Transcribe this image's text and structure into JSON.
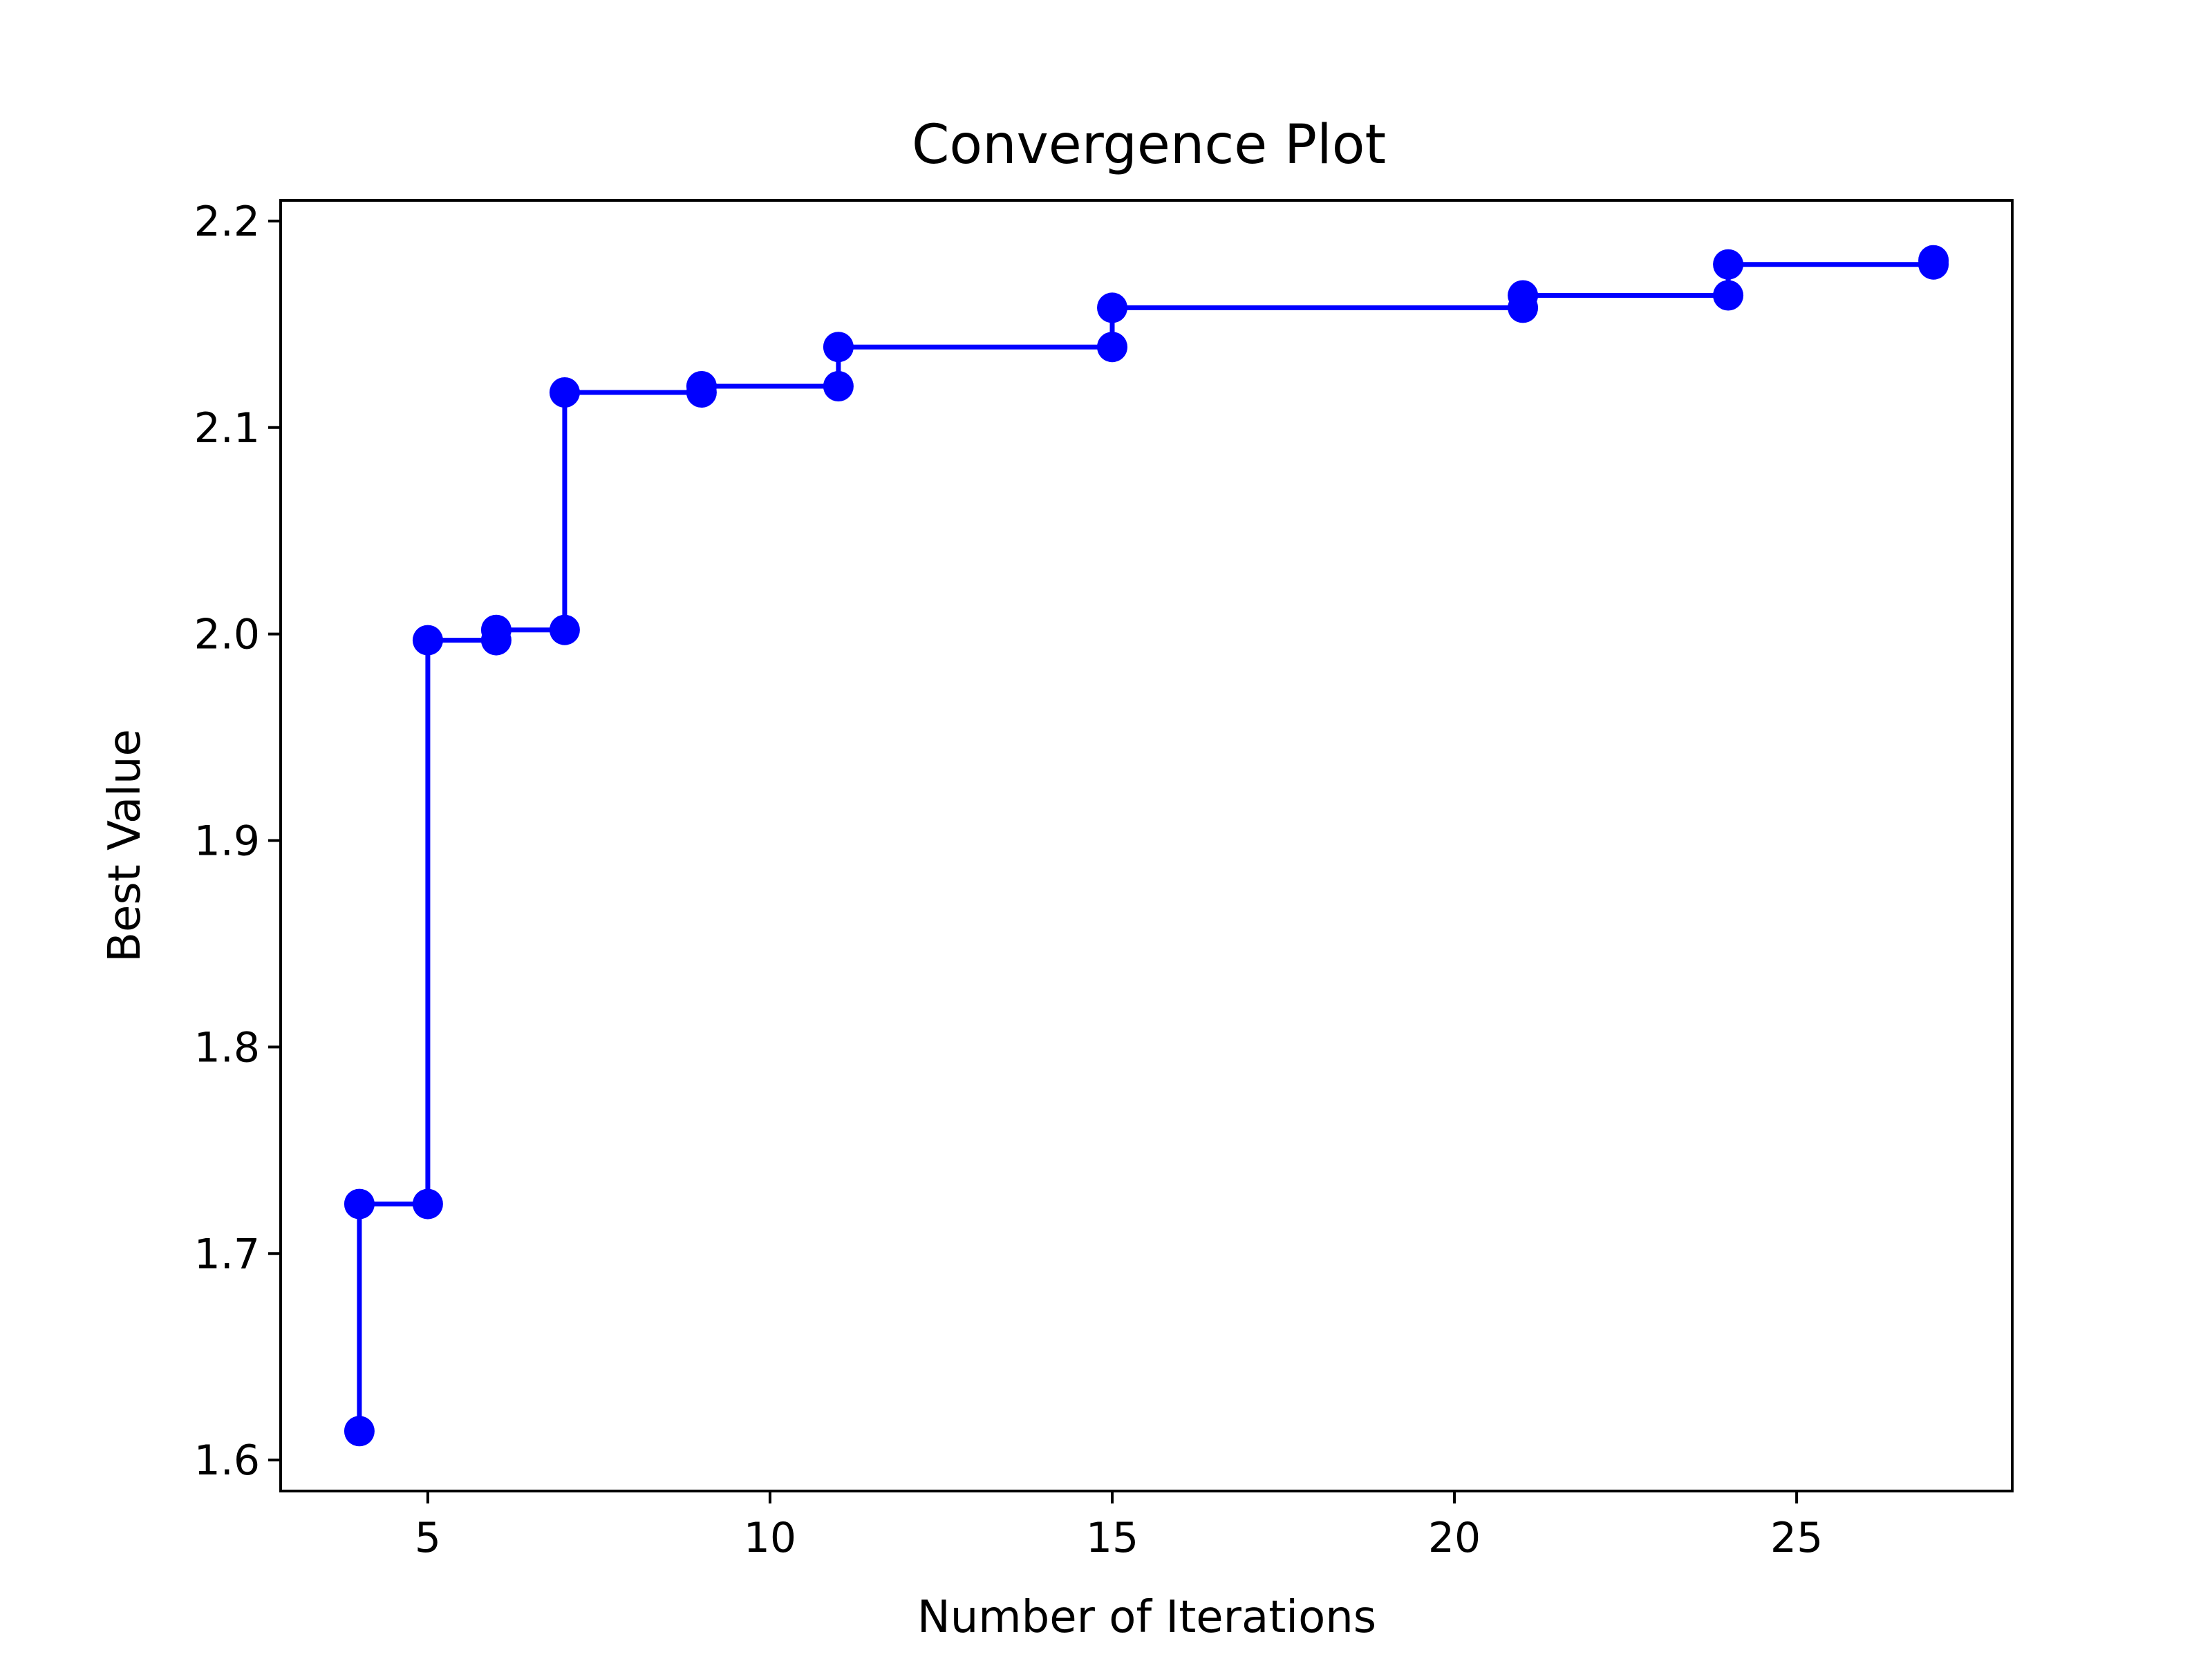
{
  "chart_data": {
    "type": "line",
    "title": "Convergence Plot",
    "xlabel": "Number of Iterations",
    "ylabel": "Best Value",
    "xlim": [
      2.85,
      28.15
    ],
    "ylim": [
      1.585,
      2.21
    ],
    "xticks": [
      5,
      10,
      15,
      20,
      25
    ],
    "xtick_labels": [
      "5",
      "10",
      "15",
      "20",
      "25"
    ],
    "yticks": [
      1.6,
      1.7,
      1.8,
      1.9,
      2.0,
      2.1,
      2.2
    ],
    "ytick_labels": [
      "1.6",
      "1.7",
      "1.8",
      "1.9",
      "2.0",
      "2.1",
      "2.2"
    ],
    "grid": false,
    "legend": "none",
    "line_color": "#0000ff",
    "series": [
      {
        "x": [
          4,
          4,
          5,
          5,
          6,
          6,
          7,
          7,
          9,
          9,
          11,
          11,
          15,
          15,
          21,
          21,
          24,
          24,
          27,
          27
        ],
        "values": [
          1.614,
          1.724,
          1.724,
          1.997,
          1.997,
          2.002,
          2.002,
          2.117,
          2.117,
          2.12,
          2.12,
          2.139,
          2.139,
          2.158,
          2.158,
          2.164,
          2.164,
          2.179,
          2.179,
          2.181
        ]
      }
    ]
  }
}
